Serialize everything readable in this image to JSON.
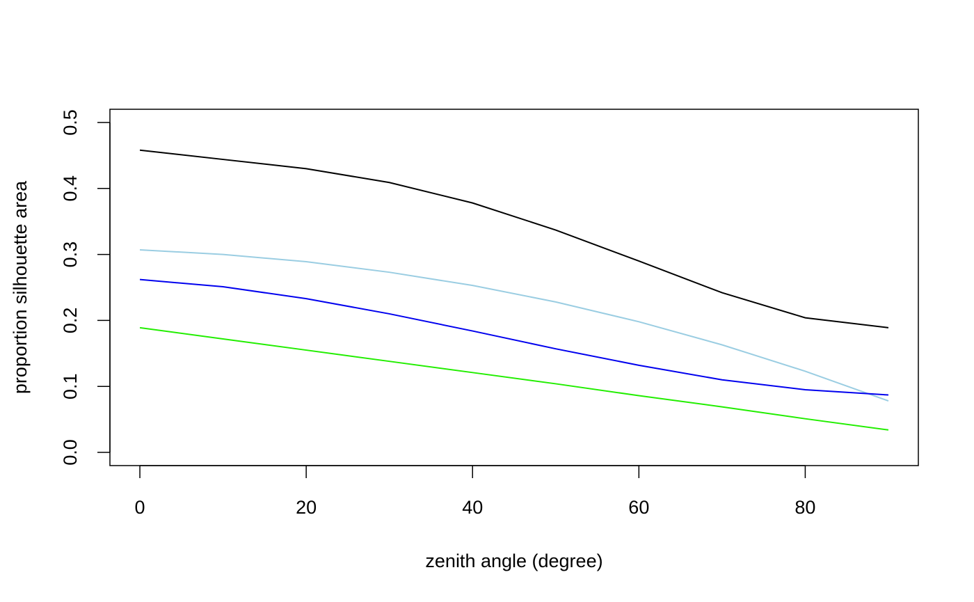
{
  "chart_data": {
    "type": "line",
    "title": "",
    "xlabel": "zenith angle (degree)",
    "ylabel": "proportion silhouette area",
    "xlim": [
      -3.6,
      93.6
    ],
    "ylim": [
      -0.02,
      0.52
    ],
    "xticks": [
      0,
      20,
      40,
      60,
      80
    ],
    "xtick_labels": [
      "0",
      "20",
      "40",
      "60",
      "80"
    ],
    "yticks": [
      0.0,
      0.1,
      0.2,
      0.3,
      0.4,
      0.5
    ],
    "ytick_labels": [
      "0.0",
      "0.1",
      "0.2",
      "0.3",
      "0.4",
      "0.5"
    ],
    "grid": false,
    "legend": "none",
    "x": [
      0,
      10,
      20,
      30,
      40,
      50,
      60,
      70,
      80,
      90
    ],
    "series": [
      {
        "color": "#000000",
        "values": [
          0.458,
          0.444,
          0.43,
          0.409,
          0.378,
          0.337,
          0.29,
          0.242,
          0.204,
          0.189
        ]
      },
      {
        "color": "#9ACDE2",
        "values": [
          0.307,
          0.3,
          0.289,
          0.273,
          0.253,
          0.228,
          0.198,
          0.163,
          0.123,
          0.078
        ]
      },
      {
        "color": "#0000EE",
        "values": [
          0.262,
          0.251,
          0.233,
          0.21,
          0.184,
          0.157,
          0.132,
          0.11,
          0.095,
          0.087
        ]
      },
      {
        "color": "#22EE00",
        "values": [
          0.189,
          0.172,
          0.155,
          0.138,
          0.121,
          0.104,
          0.086,
          0.069,
          0.051,
          0.034
        ]
      }
    ]
  }
}
